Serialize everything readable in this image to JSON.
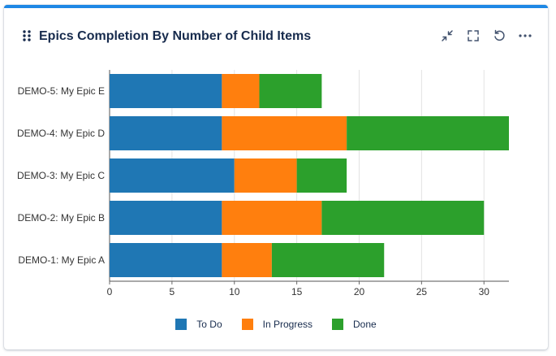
{
  "header": {
    "title": "Epics Completion By Number of Child Items",
    "icons": [
      "drag-handle-icon",
      "collapse-icon",
      "fullscreen-icon",
      "refresh-icon",
      "more-icon"
    ]
  },
  "chart_data": {
    "type": "bar",
    "orientation": "horizontal",
    "stacked": true,
    "title": "Epics Completion By Number of Child Items",
    "categories": [
      "DEMO-5: My Epic E",
      "DEMO-4: My Epic D",
      "DEMO-3: My Epic C",
      "DEMO-2: My Epic B",
      "DEMO-1: My Epic A"
    ],
    "series": [
      {
        "name": "To Do",
        "color": "#1f77b4",
        "values": [
          9,
          9,
          10,
          9,
          9
        ]
      },
      {
        "name": "In Progress",
        "color": "#ff7f0e",
        "values": [
          3,
          10,
          5,
          8,
          4
        ]
      },
      {
        "name": "Done",
        "color": "#2ca02c",
        "values": [
          5,
          13,
          4,
          13,
          9
        ]
      }
    ],
    "xticks": [
      "0",
      "5",
      "10",
      "15",
      "20",
      "25",
      "30"
    ],
    "xlim": [
      0,
      32
    ],
    "grid": true,
    "legend_position": "bottom"
  }
}
